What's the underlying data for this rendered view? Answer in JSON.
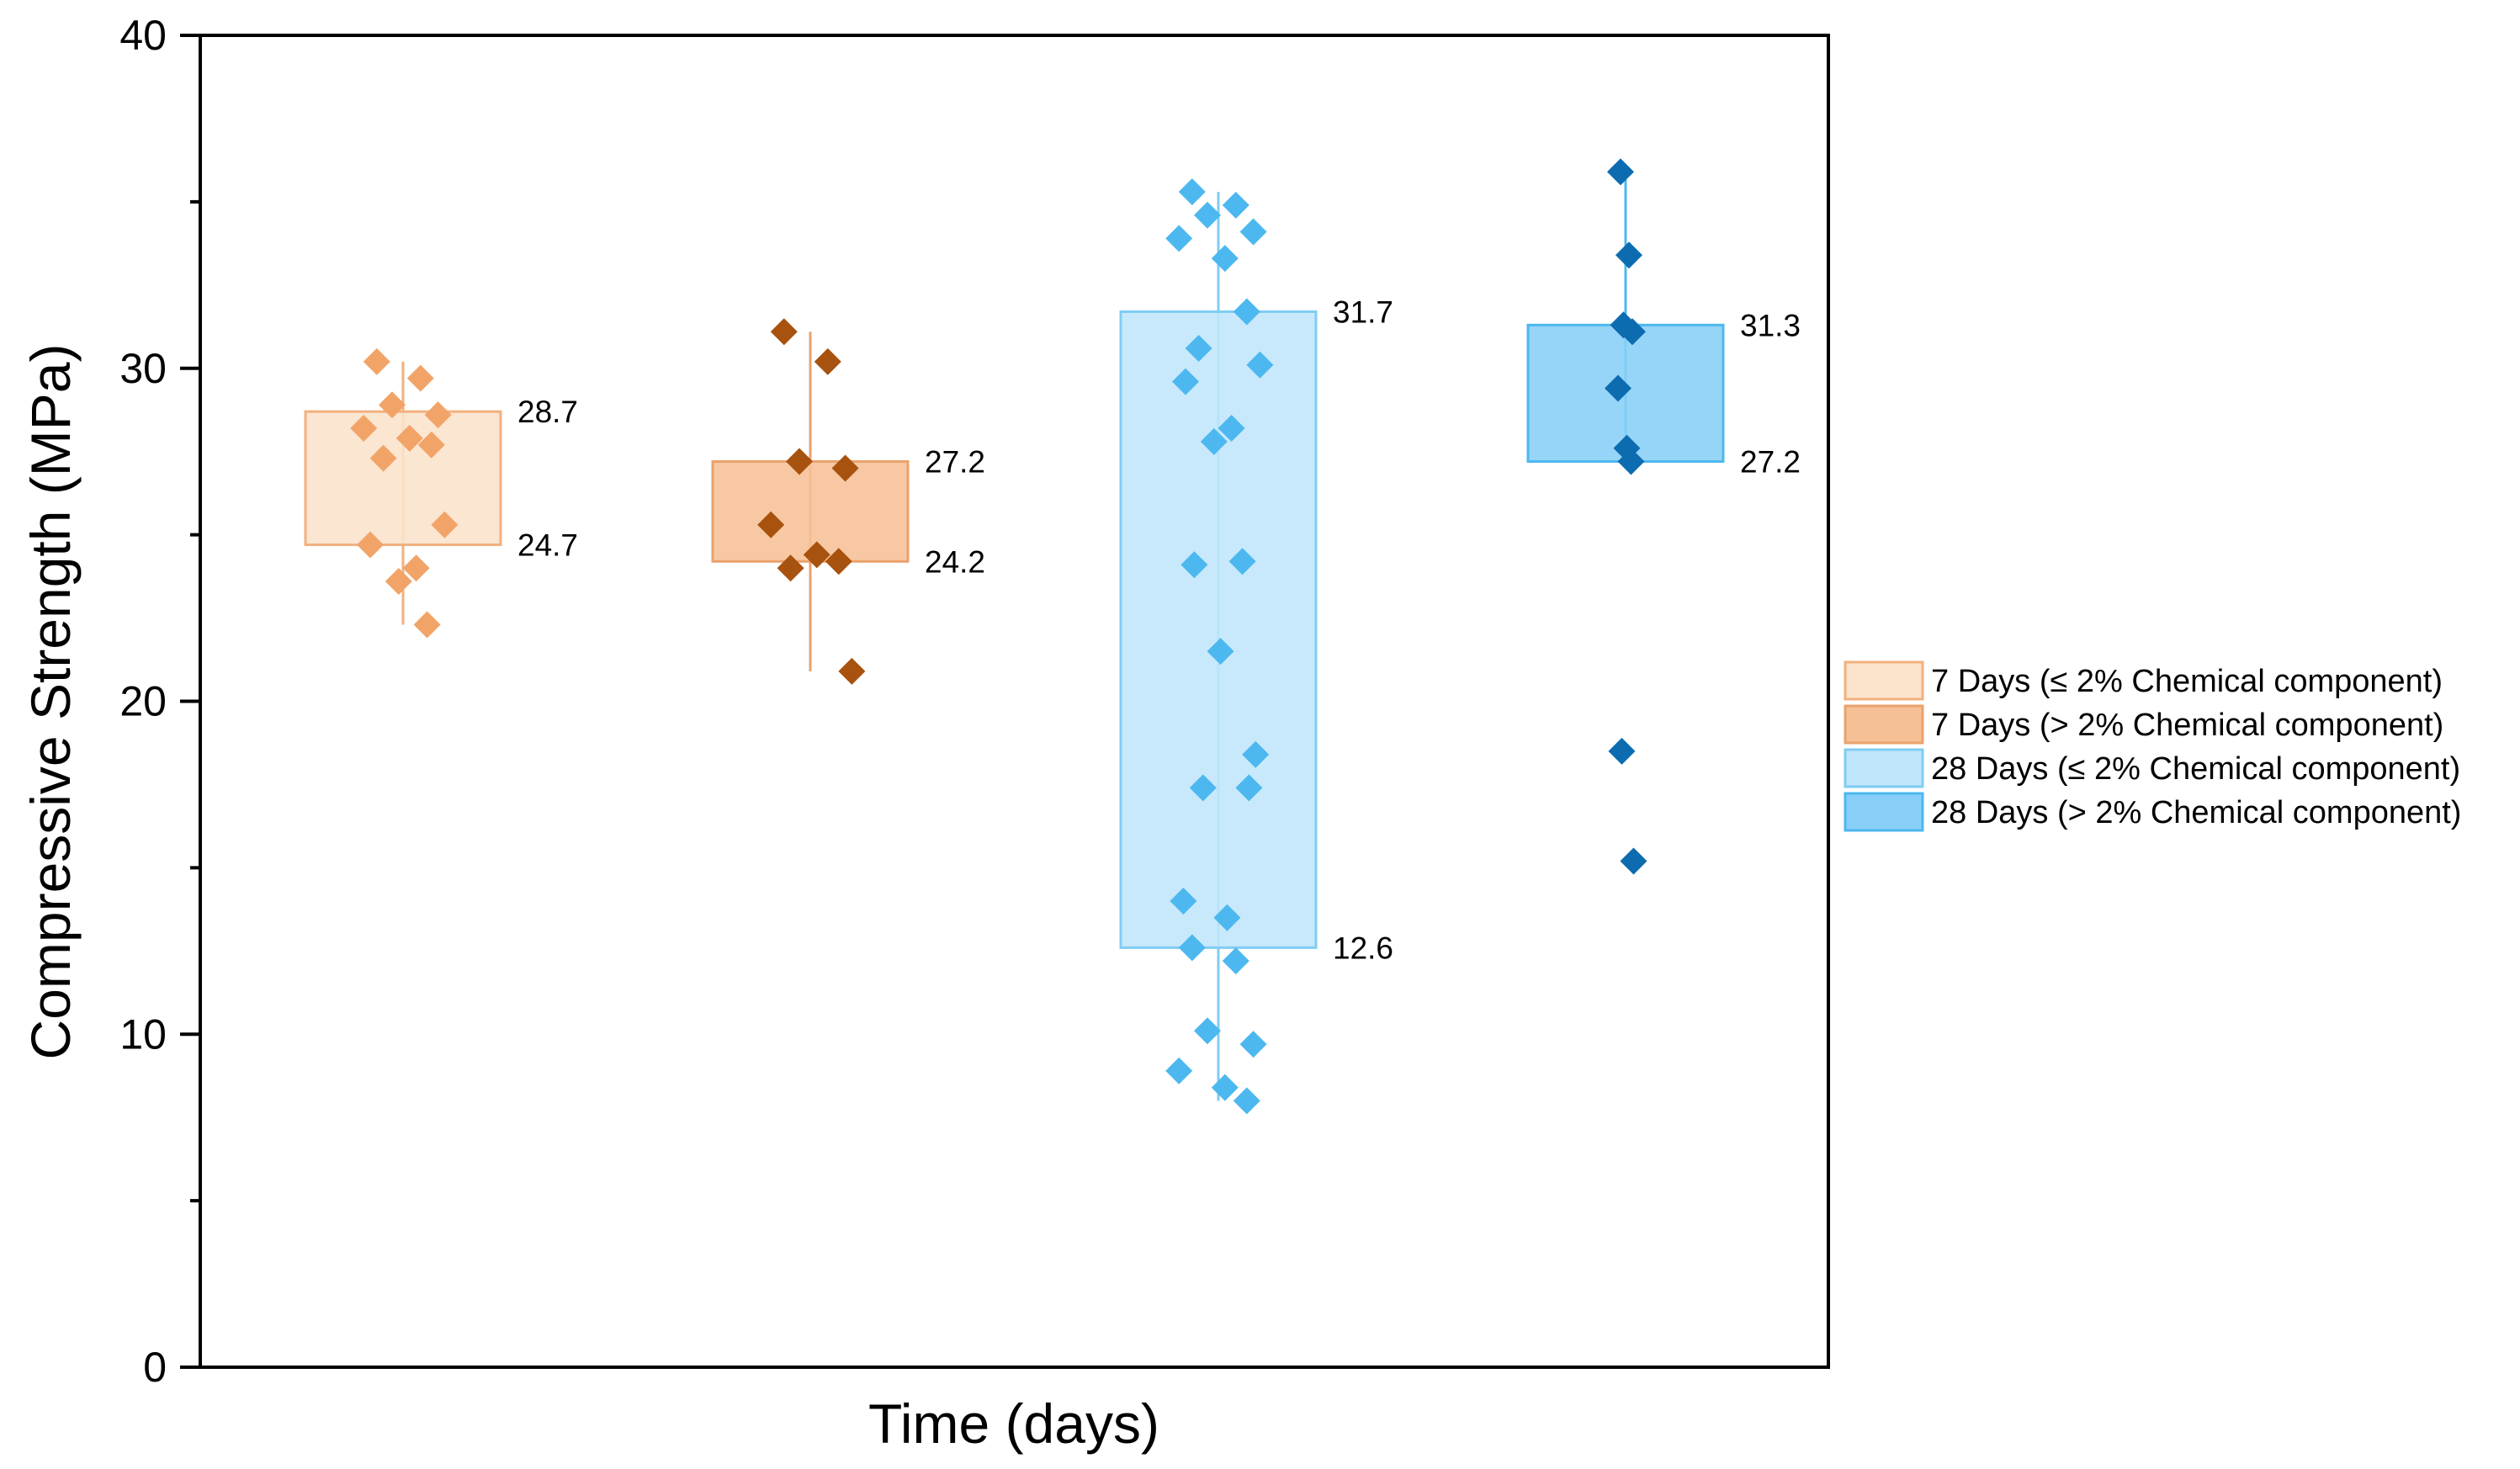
{
  "chart_data": {
    "type": "box",
    "title": "",
    "xlabel": "Time (days)",
    "ylabel": "Compressive Strength (MPa)",
    "ylim": [
      0,
      40
    ],
    "yticks": [
      0,
      10,
      20,
      30,
      40
    ],
    "legend_position": "right",
    "series": [
      {
        "name": "7 Days (≤ 2% Chemical component)",
        "fill": "#fbe3cc",
        "stroke": "#f2b07e",
        "marker": "#f2a468",
        "box_low": 24.7,
        "box_high": 28.7,
        "whisker_low": 22.3,
        "whisker_high": 30.2,
        "label_high": "28.7",
        "label_low": "24.7",
        "points": [
          30.2,
          29.7,
          28.9,
          28.6,
          28.2,
          27.9,
          27.7,
          27.3,
          25.3,
          24.7,
          24.0,
          23.6,
          22.3
        ]
      },
      {
        "name": "7 Days (> 2% Chemical component)",
        "fill": "#f6c096",
        "stroke": "#eba26c",
        "marker": "#a8520f",
        "box_low": 24.2,
        "box_high": 27.2,
        "whisker_low": 20.9,
        "whisker_high": 31.1,
        "label_high": "27.2",
        "label_low": "24.2",
        "points": [
          31.1,
          30.2,
          27.2,
          27.0,
          25.3,
          24.4,
          24.2,
          24.0,
          20.9
        ]
      },
      {
        "name": "28 Days (≤ 2% Chemical component)",
        "fill": "#c0e6fb",
        "stroke": "#7fcdf3",
        "marker": "#4cb8ef",
        "box_low": 12.6,
        "box_high": 31.7,
        "whisker_low": 8.0,
        "whisker_high": 35.3,
        "label_high": "31.7",
        "label_low": "12.6",
        "points": [
          35.3,
          34.9,
          34.6,
          34.1,
          33.9,
          33.3,
          31.7,
          30.6,
          30.1,
          29.6,
          28.2,
          27.8,
          24.2,
          24.1,
          21.5,
          18.4,
          17.4,
          17.4,
          14.0,
          13.5,
          12.6,
          12.2,
          10.1,
          9.7,
          8.9,
          8.4,
          8.0
        ]
      },
      {
        "name": "28 Days (> 2% Chemical component)",
        "fill": "#88cff7",
        "stroke": "#4cb8ef",
        "marker": "#0d6cb0",
        "box_low": 27.2,
        "box_high": 31.3,
        "whisker_low": 27.2,
        "whisker_high": 35.9,
        "label_high": "31.3",
        "label_low": "27.2",
        "points": [
          35.9,
          33.4,
          31.3,
          31.1,
          29.4,
          27.6,
          27.2,
          18.5,
          15.2
        ]
      }
    ]
  }
}
